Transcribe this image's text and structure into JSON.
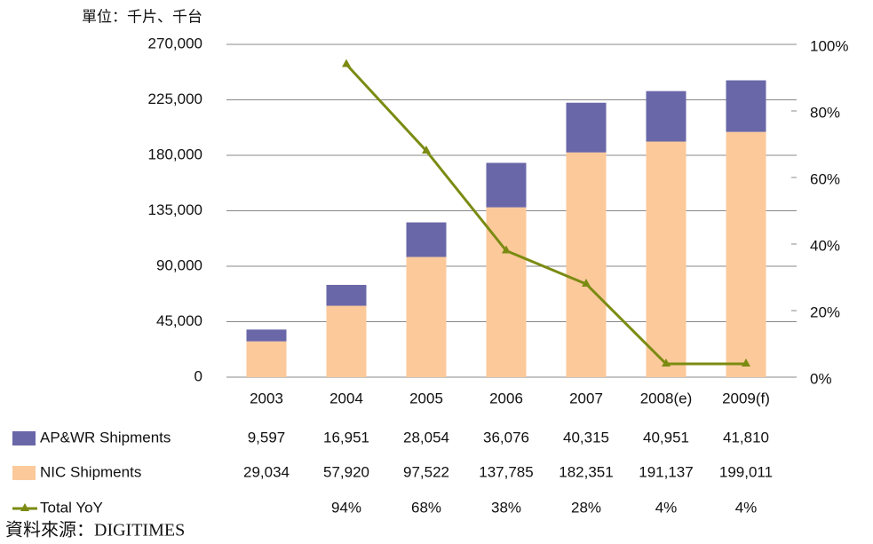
{
  "chart_data": {
    "type": "bar",
    "stacked": true,
    "unit_label": "單位：千片、千台",
    "source": "資料來源：DIGITIMES",
    "categories": [
      "2003",
      "2004",
      "2005",
      "2006",
      "2007",
      "2008(e)",
      "2009(f)"
    ],
    "series": [
      {
        "name": "NIC Shipments",
        "color": "#fcc99b",
        "values": [
          29034,
          57920,
          97522,
          137785,
          182351,
          191137,
          199011
        ],
        "value_labels": [
          "29,034",
          "57,920",
          "97,522",
          "137,785",
          "182,351",
          "191,137",
          "199,011"
        ]
      },
      {
        "name": "AP&WR Shipments",
        "color": "#6a67a8",
        "values": [
          9597,
          16951,
          28054,
          36076,
          40315,
          40951,
          41810
        ],
        "value_labels": [
          "9,597",
          "16,951",
          "28,054",
          "36,076",
          "40,315",
          "40,951",
          "41,810"
        ]
      },
      {
        "name": "Total YoY",
        "color": "#7b8b12",
        "type": "line",
        "axis": "y2",
        "values": [
          null,
          94,
          68,
          38,
          28,
          4,
          4
        ],
        "value_labels": [
          null,
          "94%",
          "68%",
          "38%",
          "28%",
          "4%",
          "4%"
        ]
      }
    ],
    "ylim": [
      0,
      270000
    ],
    "yticks": [
      0,
      {
        "value": 45000,
        "label": "45,000"
      },
      {
        "value": 90000,
        "label": "90,000"
      },
      {
        "value": 135000,
        "label": "135,000"
      },
      {
        "value": 180000,
        "label": "180,000"
      },
      {
        "value": 225000,
        "label": "225,000"
      },
      {
        "value": 270000,
        "label": "270,000"
      }
    ],
    "y2lim": [
      0,
      100
    ],
    "y2ticks": [
      {
        "value": 0,
        "label": "0%"
      },
      {
        "value": 20,
        "label": "20%"
      },
      {
        "value": 40,
        "label": "40%"
      },
      {
        "value": 60,
        "label": "60%"
      },
      {
        "value": 80,
        "label": "80%"
      },
      {
        "value": 100,
        "label": "100%"
      }
    ],
    "grid": true
  }
}
